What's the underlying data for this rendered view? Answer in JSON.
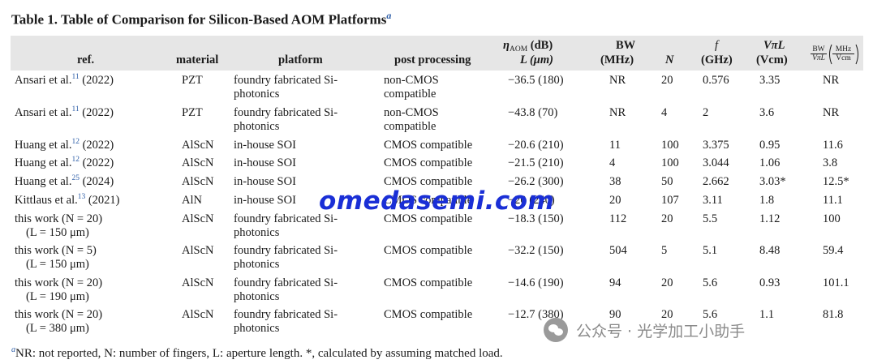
{
  "caption": {
    "title": "Table 1. Table of Comparison for Silicon-Based AOM Platforms",
    "marker": "a"
  },
  "headers": {
    "ref": "ref.",
    "material": "material",
    "platform": "platform",
    "post_processing": "post processing",
    "eta_line1": "η",
    "eta_sub": "AOM",
    "eta_unit": " (dB)",
    "eta_line2": "L (μm)",
    "bw_line1": "BW",
    "bw_line2": "(MHz)",
    "n": "N",
    "f_line1": "f",
    "f_line2": "(GHz)",
    "vpil_line1": "VπL",
    "vpil_line2": "(Vcm)",
    "fom_num": "BW",
    "fom_den": "VπL",
    "fom_unit_num": "MHz",
    "fom_unit_den": "Vcm"
  },
  "rows": [
    {
      "ref": "Ansari et al.",
      "cite": "11",
      "year": " (2022)",
      "ref2": "",
      "material": "PZT",
      "platform": "foundry fabricated Si-",
      "platform2": "photonics",
      "post": "non-CMOS",
      "post2": "compatible",
      "eta": "−36.5 (180)",
      "bw": "NR",
      "n": "20",
      "f": "0.576",
      "vpil": "3.35",
      "fom": "NR"
    },
    {
      "ref": "Ansari et al.",
      "cite": "11",
      "year": " (2022)",
      "ref2": "",
      "material": "PZT",
      "platform": "foundry fabricated Si-",
      "platform2": "photonics",
      "post": "non-CMOS",
      "post2": "compatible",
      "eta": "−43.8 (70)",
      "bw": "NR",
      "n": "4",
      "f": "2",
      "vpil": "3.6",
      "fom": "NR"
    },
    {
      "ref": "Huang et al.",
      "cite": "12",
      "year": " (2022)",
      "ref2": "",
      "material": "AlScN",
      "platform": "in-house SOI",
      "platform2": "",
      "post": "CMOS compatible",
      "post2": "",
      "eta": "−20.6 (210)",
      "bw": "11",
      "n": "100",
      "f": "3.375",
      "vpil": "0.95",
      "fom": "11.6"
    },
    {
      "ref": "Huang et al.",
      "cite": "12",
      "year": " (2022)",
      "ref2": "",
      "material": "AlScN",
      "platform": "in-house SOI",
      "platform2": "",
      "post": "CMOS compatible",
      "post2": "",
      "eta": "−21.5 (210)",
      "bw": "4",
      "n": "100",
      "f": "3.044",
      "vpil": "1.06",
      "fom": "3.8"
    },
    {
      "ref": "Huang et al.",
      "cite": "25",
      "year": " (2024)",
      "ref2": "",
      "material": "AlScN",
      "platform": "in-house SOI",
      "platform2": "",
      "post": "CMOS compatible",
      "post2": "",
      "eta": "−26.2 (300)",
      "bw": "38",
      "n": "50",
      "f": "2.662",
      "vpil": "3.03*",
      "fom": "12.5*"
    },
    {
      "ref": "Kittlaus et al.",
      "cite": "13",
      "year": " (2021)",
      "ref2": "",
      "material": "AlN",
      "platform": "in-house SOI",
      "platform2": "",
      "post": "CMOS compatible",
      "post2": "",
      "eta": "−20 (240)",
      "bw": "20",
      "n": "107",
      "f": "3.11",
      "vpil": "1.8",
      "fom": "11.1"
    },
    {
      "ref": "this work (N = 20)",
      "cite": "",
      "year": "",
      "ref2": "(L = 150 μm)",
      "material": "AlScN",
      "platform": "foundry fabricated Si-",
      "platform2": "photonics",
      "post": "CMOS compatible",
      "post2": "",
      "eta": "−18.3 (150)",
      "bw": "112",
      "n": "20",
      "f": "5.5",
      "vpil": "1.12",
      "fom": "100"
    },
    {
      "ref": "this work (N = 5)",
      "cite": "",
      "year": "",
      "ref2": "(L = 150 μm)",
      "material": "AlScN",
      "platform": "foundry fabricated Si-",
      "platform2": "photonics",
      "post": "CMOS compatible",
      "post2": "",
      "eta": "−32.2 (150)",
      "bw": "504",
      "n": "5",
      "f": "5.1",
      "vpil": "8.48",
      "fom": "59.4"
    },
    {
      "ref": "this work (N = 20)",
      "cite": "",
      "year": "",
      "ref2": "(L = 190 μm)",
      "material": "AlScN",
      "platform": "foundry fabricated Si-",
      "platform2": "photonics",
      "post": "CMOS compatible",
      "post2": "",
      "eta": "−14.6 (190)",
      "bw": "94",
      "n": "20",
      "f": "5.6",
      "vpil": "0.93",
      "fom": "101.1"
    },
    {
      "ref": "this work (N = 20)",
      "cite": "",
      "year": "",
      "ref2": "(L = 380 μm)",
      "material": "AlScN",
      "platform": "foundry fabricated Si-",
      "platform2": "photonics",
      "post": "CMOS compatible",
      "post2": "",
      "eta": "−12.7 (380)",
      "bw": "90",
      "n": "20",
      "f": "5.6",
      "vpil": "1.1",
      "fom": "81.8"
    }
  ],
  "footnote": {
    "marker": "a",
    "text": "NR: not reported, N: number of fingers, L: aperture length. *, calculated by assuming matched load."
  },
  "watermark": "omedasemi.com",
  "wechat_badge": {
    "icon": "wechat-icon",
    "text": "公众号 · 光学加工小助手"
  },
  "colors": {
    "header_bg": "#e6e6e6",
    "citation": "#2e5ea8",
    "watermark": "#1a2fd6",
    "badge": "#8a8a8a"
  }
}
